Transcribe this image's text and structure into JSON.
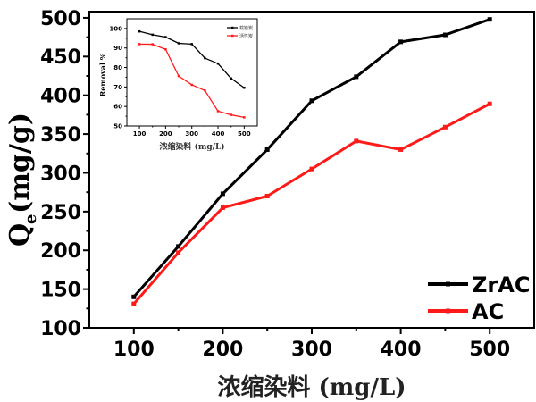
{
  "chart_data": [
    {
      "type": "line",
      "xlabel": "浓缩染料 (mg/L)",
      "ylabel_main": "Q",
      "ylabel_sub": "e",
      "ylabel_unit": "(mg/g)",
      "xlim": [
        50,
        550
      ],
      "ylim": [
        100,
        508
      ],
      "xticks": [
        100,
        200,
        300,
        400,
        500
      ],
      "yticks": [
        100,
        150,
        200,
        250,
        300,
        350,
        400,
        450,
        500
      ],
      "grid": false,
      "legend_position": "bottom-right",
      "x": [
        100,
        150,
        200,
        250,
        300,
        350,
        400,
        450,
        500
      ],
      "series": [
        {
          "name": "ZrAC",
          "color": "#000000",
          "values": [
            140,
            205,
            273,
            330,
            393,
            424,
            469,
            478,
            498
          ]
        },
        {
          "name": "AC",
          "color": "#ff1a1a",
          "values": [
            131,
            197,
            255,
            270,
            305,
            341,
            330,
            359,
            389
          ]
        }
      ]
    },
    {
      "type": "line",
      "position": "inset top-left",
      "xlabel": "浓缩染料 (mg/L)",
      "ylabel": "Removal %",
      "xlim": [
        52,
        550
      ],
      "ylim": [
        50,
        105
      ],
      "xticks": [
        100,
        200,
        300,
        400,
        500
      ],
      "yticks": [
        50,
        60,
        70,
        80,
        90,
        100
      ],
      "grid": false,
      "legend_position": "top-right",
      "x": [
        100,
        150,
        200,
        250,
        300,
        350,
        400,
        450,
        500
      ],
      "series": [
        {
          "name": "载锆炭",
          "color": "#000000",
          "values": [
            98.5,
            96.8,
            95.6,
            92.4,
            92.0,
            84.8,
            82.0,
            74.4,
            69.6
          ]
        },
        {
          "name": "活性炭",
          "color": "#ff1a1a",
          "values": [
            92.0,
            91.9,
            89.3,
            75.6,
            71.1,
            68.2,
            57.6,
            55.7,
            54.4
          ]
        }
      ]
    }
  ]
}
